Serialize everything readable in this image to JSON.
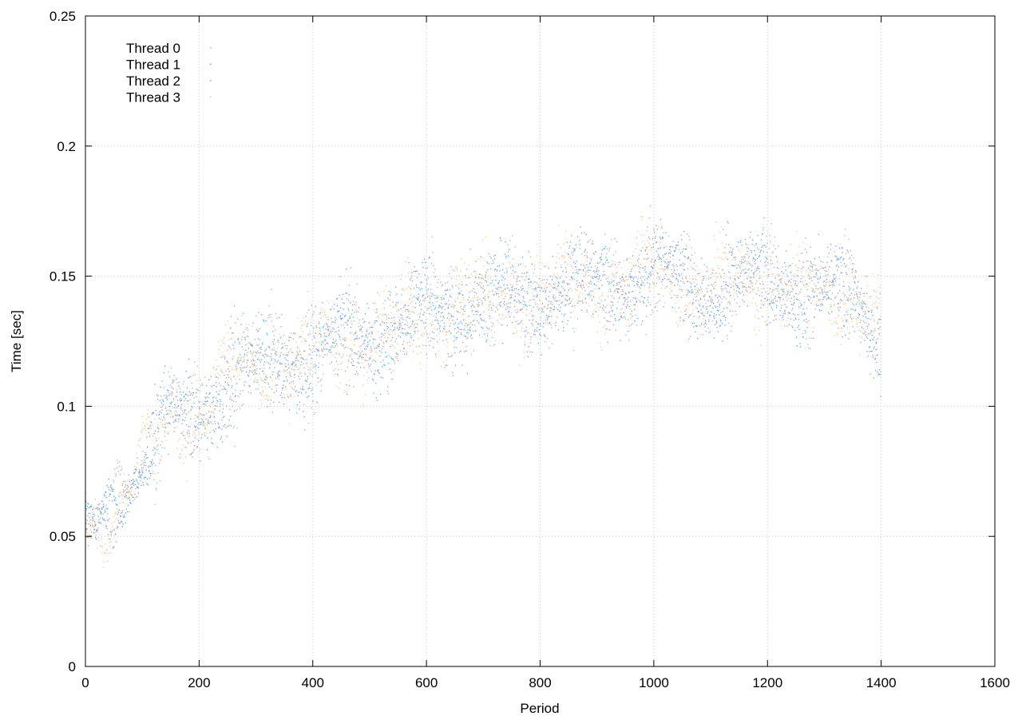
{
  "chart_data": {
    "type": "scatter",
    "title": "",
    "xlabel": "Period",
    "ylabel": "Time [sec]",
    "xlim": [
      0,
      1600
    ],
    "ylim": [
      0,
      0.25
    ],
    "xticks": [
      "0",
      "200",
      "400",
      "600",
      "800",
      "1000",
      "1200",
      "1400",
      "1600"
    ],
    "yticks": [
      "0",
      "0.05",
      "0.1",
      "0.15",
      "0.2",
      "0.25"
    ],
    "grid": true,
    "legend_position": "top-left",
    "n_points": 1400,
    "series": [
      {
        "name": "Thread 0",
        "color": "#b0b0b0"
      },
      {
        "name": "Thread 1",
        "color": "#4aa8ec"
      },
      {
        "name": "Thread 2",
        "color": "#8e9ad6"
      },
      {
        "name": "Thread 3",
        "color": "#f6c58a"
      }
    ],
    "trend": {
      "x": [
        0,
        20,
        50,
        100,
        150,
        200,
        250,
        300,
        350,
        400,
        450,
        500,
        550,
        600,
        650,
        700,
        750,
        800,
        850,
        900,
        950,
        1000,
        1050,
        1100,
        1150,
        1200,
        1250,
        1300,
        1350,
        1400
      ],
      "y": [
        0.05,
        0.052,
        0.062,
        0.08,
        0.095,
        0.098,
        0.112,
        0.115,
        0.118,
        0.12,
        0.124,
        0.127,
        0.13,
        0.135,
        0.138,
        0.14,
        0.142,
        0.143,
        0.145,
        0.147,
        0.148,
        0.152,
        0.148,
        0.145,
        0.147,
        0.15,
        0.146,
        0.142,
        0.145,
        0.13
      ]
    }
  }
}
